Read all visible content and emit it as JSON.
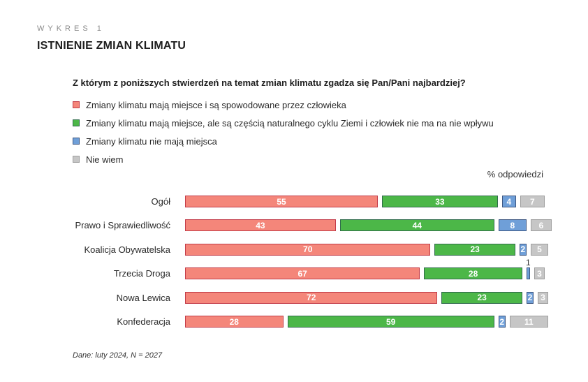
{
  "header": {
    "kicker": "WYKRES 1",
    "title": "ISTNIENIE ZMIAN KLIMATU"
  },
  "question": "Z którym z poniższych stwierdzeń na temat zmian klimatu zgadza się Pan/Pani najbardziej?",
  "unit_label": "% odpowiedzi",
  "footnote": "Dane: luty 2024, N = 2027",
  "colors": {
    "human": {
      "fill": "#f4867a",
      "border": "#c23b48"
    },
    "natural": {
      "fill": "#4cb748",
      "border": "#2f6a4b"
    },
    "none": {
      "fill": "#6f9fd8",
      "border": "#3d5680"
    },
    "dontknow": {
      "fill": "#c6c6c6",
      "border": "#9e9e9e"
    }
  },
  "legend": [
    {
      "key": "human",
      "label": "Zmiany klimatu mają miejsce i są spowodowane przez człowieka"
    },
    {
      "key": "natural",
      "label": "Zmiany klimatu mają miejsce, ale są częścią naturalnego cyklu Ziemi i człowiek nie ma na nie wpływu"
    },
    {
      "key": "none",
      "label": "Zmiany klimatu nie mają miejsca"
    },
    {
      "key": "dontknow",
      "label": "Nie wiem"
    }
  ],
  "chart_data": {
    "type": "bar",
    "orientation": "horizontal",
    "stacked": true,
    "title": "ISTNIENIE ZMIAN KLIMATU",
    "subtitle": "Z którym z poniższych stwierdzeń na temat zmian klimatu zgadza się Pan/Pani najbardziej?",
    "xlabel": "% odpowiedzi",
    "ylabel": "",
    "categories": [
      "Ogół",
      "Prawo i Sprawiedliwość",
      "Koalicja Obywatelska",
      "Trzecia Droga",
      "Nowa Lewica",
      "Konfederacja"
    ],
    "series": [
      {
        "name": "Zmiany klimatu mają miejsce i są spowodowane przez człowieka",
        "key": "human",
        "values": [
          55,
          43,
          70,
          67,
          72,
          28
        ]
      },
      {
        "name": "Zmiany klimatu mają miejsce, ale są częścią naturalnego cyklu Ziemi i człowiek nie ma na nie wpływu",
        "key": "natural",
        "values": [
          33,
          44,
          23,
          28,
          23,
          59
        ]
      },
      {
        "name": "Zmiany klimatu nie mają miejsca",
        "key": "none",
        "values": [
          4,
          8,
          2,
          1,
          2,
          2
        ]
      },
      {
        "name": "Nie wiem",
        "key": "dontknow",
        "values": [
          7,
          6,
          5,
          3,
          3,
          11
        ]
      }
    ],
    "legend_position": "top",
    "grid": false,
    "annotation": "Dane: luty 2024, N = 2027"
  }
}
